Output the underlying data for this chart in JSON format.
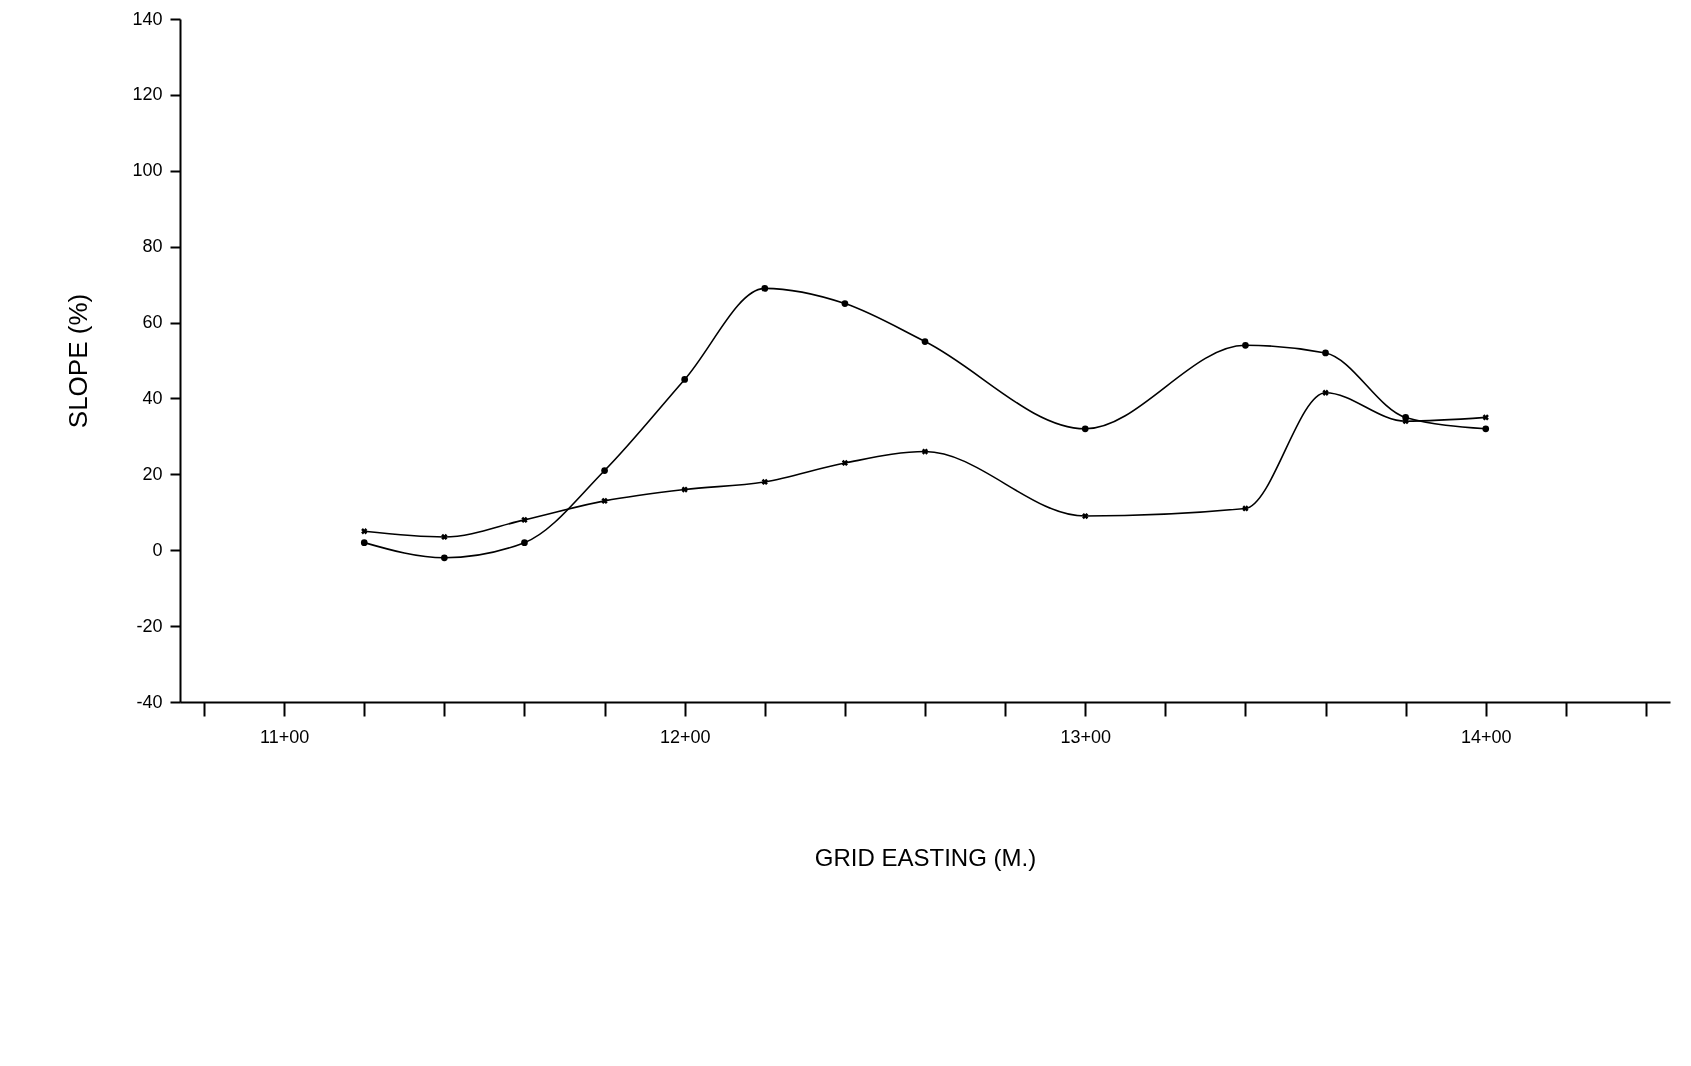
{
  "chart_data": {
    "type": "line",
    "xlabel": "GRID EASTING (M.)",
    "ylabel": "SLOPE (%)",
    "categories": [
      null,
      "11+00",
      null,
      null,
      null,
      null,
      "12+00",
      null,
      null,
      null,
      null,
      "13+00",
      null,
      null,
      null,
      null,
      "14+00",
      null,
      null
    ],
    "series": [
      {
        "color": "#000000",
        "marker": "circle",
        "values": [
          null,
          null,
          2,
          -2,
          2,
          21,
          45,
          69,
          65,
          55,
          null,
          32,
          null,
          54,
          52,
          35,
          32,
          null,
          null
        ]
      },
      {
        "color": "#000000",
        "marker": "cross",
        "values": [
          null,
          null,
          5,
          3.5,
          8,
          13,
          16,
          18,
          23,
          26,
          null,
          9,
          null,
          11,
          41.5,
          34,
          35,
          null,
          null
        ]
      }
    ],
    "ylim": [
      -40,
      140
    ],
    "yticks": [
      -40,
      -20,
      0,
      20,
      40,
      60,
      80,
      100,
      120,
      140
    ],
    "grid": false,
    "line_style": "solid"
  }
}
